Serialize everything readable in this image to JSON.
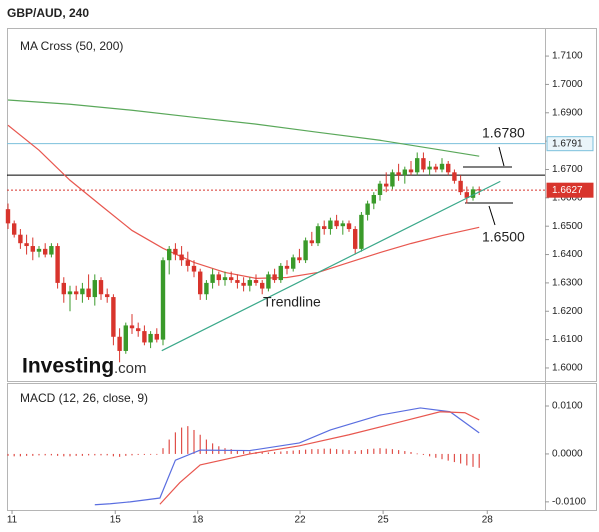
{
  "chart_data": [
    {
      "type": "candlestick",
      "title": "GBP/AUD, 240",
      "subtitle": "MA Cross (50, 200)",
      "logo": {
        "brand": "Investing",
        "domain": ".com"
      },
      "x": [
        0,
        1,
        2,
        3,
        4,
        5,
        6,
        7,
        8,
        9,
        10,
        11,
        12,
        13,
        14,
        15,
        16,
        17,
        18,
        19,
        20,
        21,
        22,
        23,
        24,
        25,
        26,
        27,
        28,
        29,
        30,
        31,
        32,
        33,
        34,
        35,
        36,
        37,
        38,
        39,
        40,
        41,
        42,
        43,
        44,
        45,
        46,
        47,
        48,
        49,
        50,
        51,
        52,
        53,
        54,
        55,
        56,
        57,
        58,
        59,
        60,
        61,
        62,
        63,
        64,
        65,
        66,
        67,
        68,
        69,
        70,
        71,
        72,
        73,
        74,
        75,
        76
      ],
      "open": [
        1.656,
        1.651,
        1.647,
        1.644,
        1.643,
        1.641,
        1.642,
        1.64,
        1.643,
        1.63,
        1.626,
        1.627,
        1.626,
        1.628,
        1.625,
        1.631,
        1.626,
        1.625,
        1.611,
        1.606,
        1.615,
        1.614,
        1.613,
        1.609,
        1.612,
        1.61,
        1.638,
        1.642,
        1.64,
        1.638,
        1.636,
        1.634,
        1.626,
        1.63,
        1.633,
        1.631,
        1.632,
        1.631,
        1.63,
        1.629,
        1.631,
        1.63,
        1.628,
        1.633,
        1.631,
        1.636,
        1.635,
        1.639,
        1.638,
        1.645,
        1.644,
        1.65,
        1.649,
        1.652,
        1.65,
        1.651,
        1.649,
        1.642,
        1.654,
        1.658,
        1.661,
        1.665,
        1.664,
        1.669,
        1.668,
        1.67,
        1.669,
        1.674,
        1.67,
        1.671,
        1.67,
        1.672,
        1.669,
        1.666,
        1.662,
        1.66,
        1.663
      ],
      "high": [
        1.658,
        1.652,
        1.649,
        1.647,
        1.646,
        1.643,
        1.644,
        1.644,
        1.644,
        1.632,
        1.629,
        1.629,
        1.63,
        1.633,
        1.633,
        1.632,
        1.628,
        1.626,
        1.614,
        1.616,
        1.619,
        1.616,
        1.615,
        1.613,
        1.614,
        1.639,
        1.643,
        1.644,
        1.643,
        1.641,
        1.638,
        1.635,
        1.631,
        1.635,
        1.634,
        1.634,
        1.634,
        1.633,
        1.632,
        1.632,
        1.633,
        1.631,
        1.634,
        1.635,
        1.637,
        1.638,
        1.64,
        1.642,
        1.646,
        1.648,
        1.651,
        1.652,
        1.653,
        1.654,
        1.652,
        1.652,
        1.65,
        1.655,
        1.659,
        1.662,
        1.666,
        1.669,
        1.67,
        1.672,
        1.671,
        1.673,
        1.676,
        1.676,
        1.673,
        1.672,
        1.674,
        1.673,
        1.67,
        1.668,
        1.664,
        1.664,
        1.664
      ],
      "low": [
        1.649,
        1.646,
        1.642,
        1.64,
        1.638,
        1.639,
        1.639,
        1.639,
        1.628,
        1.623,
        1.62,
        1.624,
        1.623,
        1.624,
        1.622,
        1.624,
        1.623,
        1.608,
        1.602,
        1.605,
        1.612,
        1.611,
        1.608,
        1.607,
        1.609,
        1.608,
        1.633,
        1.638,
        1.636,
        1.634,
        1.632,
        1.624,
        1.624,
        1.628,
        1.629,
        1.629,
        1.63,
        1.628,
        1.627,
        1.627,
        1.629,
        1.626,
        1.627,
        1.63,
        1.63,
        1.633,
        1.634,
        1.637,
        1.637,
        1.643,
        1.643,
        1.647,
        1.647,
        1.649,
        1.647,
        1.648,
        1.64,
        1.641,
        1.652,
        1.656,
        1.659,
        1.662,
        1.663,
        1.666,
        1.665,
        1.668,
        1.668,
        1.669,
        1.668,
        1.669,
        1.669,
        1.668,
        1.665,
        1.661,
        1.658,
        1.659,
        1.661
      ],
      "close": [
        1.651,
        1.647,
        1.644,
        1.643,
        1.641,
        1.642,
        1.64,
        1.643,
        1.63,
        1.626,
        1.627,
        1.626,
        1.628,
        1.625,
        1.631,
        1.626,
        1.625,
        1.611,
        1.606,
        1.615,
        1.614,
        1.613,
        1.609,
        1.612,
        1.61,
        1.638,
        1.642,
        1.64,
        1.638,
        1.636,
        1.634,
        1.626,
        1.63,
        1.633,
        1.631,
        1.632,
        1.631,
        1.63,
        1.629,
        1.631,
        1.63,
        1.628,
        1.633,
        1.631,
        1.636,
        1.635,
        1.639,
        1.638,
        1.645,
        1.644,
        1.65,
        1.649,
        1.652,
        1.65,
        1.651,
        1.649,
        1.642,
        1.654,
        1.658,
        1.661,
        1.665,
        1.664,
        1.669,
        1.668,
        1.67,
        1.669,
        1.674,
        1.67,
        1.671,
        1.67,
        1.672,
        1.669,
        1.666,
        1.662,
        1.66,
        1.663,
        1.6627
      ],
      "colors": {
        "up": "#3a9a2a",
        "down": "#d8342c"
      },
      "series": [
        {
          "color": "#e8574f",
          "x": [
            0,
            5,
            10,
            15,
            20,
            25,
            30,
            35,
            40,
            45,
            50,
            55,
            60,
            65,
            70,
            76
          ],
          "values": [
            1.6856,
            1.6768,
            1.6662,
            1.6573,
            1.6485,
            1.6422,
            1.6372,
            1.6337,
            1.6316,
            1.6319,
            1.6337,
            1.6372,
            1.6407,
            1.6439,
            1.6467,
            1.6496
          ]
        },
        {
          "color": "#5aa85a",
          "x": [
            0,
            10,
            20,
            30,
            40,
            50,
            60,
            70,
            76
          ],
          "values": [
            1.6945,
            1.693,
            1.6909,
            1.6884,
            1.686,
            1.6831,
            1.6803,
            1.6768,
            1.6747
          ]
        }
      ],
      "levels": [
        {
          "value": 1.6791,
          "label": "1.6791",
          "color": "#7cc0dc"
        },
        {
          "value": 1.668,
          "color": "#000000"
        },
        {
          "value": 1.6627,
          "label": "1.6627",
          "color": "#d8342c",
          "dotted": true
        }
      ],
      "trendline": {
        "label": "Trendline",
        "color": "#3aa88a",
        "x": [
          24.8,
          79.4
        ],
        "values": [
          1.6061,
          1.6658
        ]
      },
      "annotations": [
        "1.6780",
        "1.6500"
      ],
      "xlim": [
        -0.16,
        86.61
      ],
      "xticks": [
        {
          "value": 0.65,
          "label": "11"
        },
        {
          "value": 17.3,
          "label": "15"
        },
        {
          "value": 30.6,
          "label": "18"
        },
        {
          "value": 47.1,
          "label": "22"
        },
        {
          "value": 60.5,
          "label": "25"
        },
        {
          "value": 77.3,
          "label": "28"
        }
      ],
      "ylim": [
        1.5954,
        1.7199
      ],
      "yticks": [
        {
          "value": 1.6,
          "label": "1.6000"
        },
        {
          "value": 1.61,
          "label": "1.6100"
        },
        {
          "value": 1.62,
          "label": "1.6200"
        },
        {
          "value": 1.63,
          "label": "1.6300"
        },
        {
          "value": 1.64,
          "label": "1.6400"
        },
        {
          "value": 1.65,
          "label": "1.6500"
        },
        {
          "value": 1.66,
          "label": "1.6600"
        },
        {
          "value": 1.67,
          "label": "1.6700"
        },
        {
          "value": 1.68,
          "label": "1.6800"
        },
        {
          "value": 1.69,
          "label": "1.6900"
        },
        {
          "value": 1.7,
          "label": "1.7000"
        },
        {
          "value": 1.71,
          "label": "1.7100"
        }
      ]
    },
    {
      "type": "macd",
      "title": "MACD (12, 26, close, 9)",
      "ylim": [
        -0.0117,
        0.0148
      ],
      "yticks": [
        {
          "value": 0.01,
          "label": "0.0100"
        },
        {
          "value": 0,
          "label": "0.0000"
        },
        {
          "value": -0.01,
          "label": "-0.0100"
        }
      ],
      "histogram": {
        "color": "#e0504a",
        "values": [
          -0.0004,
          -0.0005,
          -0.0005,
          -0.0004,
          -0.0004,
          -0.0003,
          -0.0003,
          -0.0003,
          -0.0004,
          -0.0005,
          -0.0005,
          -0.0004,
          -0.0004,
          -0.0003,
          -0.0003,
          -0.0003,
          -0.0003,
          -0.0005,
          -0.0006,
          -0.0004,
          -0.0003,
          -0.0002,
          -0.0002,
          -0.0001,
          -0.0001,
          0.0012,
          0.003,
          0.0045,
          0.0055,
          0.0058,
          0.005,
          0.004,
          0.003,
          0.0022,
          0.0016,
          0.0012,
          0.001,
          0.0008,
          0.0006,
          0.0005,
          0.0004,
          0.0004,
          0.0003,
          0.0004,
          0.0005,
          0.0006,
          0.0007,
          0.0008,
          0.0009,
          0.001,
          0.001,
          0.0011,
          0.0011,
          0.001,
          0.0009,
          0.0008,
          0.0006,
          0.0008,
          0.001,
          0.0011,
          0.0012,
          0.0011,
          0.001,
          0.0008,
          0.0006,
          0.0004,
          0.0001,
          -0.0002,
          -0.0005,
          -0.0008,
          -0.0011,
          -0.0014,
          -0.0017,
          -0.002,
          -0.0024,
          -0.0027,
          -0.0029
        ]
      },
      "series": [
        {
          "color": "#5a6ee0",
          "x": [
            14,
            16.5,
            19.7,
            24.5,
            27,
            31,
            39,
            47,
            52,
            60,
            66.5,
            71.3,
            76
          ],
          "values": [
            -0.0106,
            -0.0104,
            -0.01,
            -0.0092,
            -0.0013,
            0.0008,
            0.0007,
            0.0023,
            0.005,
            0.0081,
            0.0096,
            0.0088,
            0.0044
          ]
        },
        {
          "color": "#e8574f",
          "x": [
            24.5,
            27.7,
            31,
            39,
            47,
            55,
            63,
            69.7,
            73.7,
            76
          ],
          "values": [
            -0.0105,
            -0.006,
            -0.0023,
            0.0,
            0.0017,
            0.004,
            0.0066,
            0.0088,
            0.0086,
            0.0071
          ]
        }
      ]
    }
  ]
}
